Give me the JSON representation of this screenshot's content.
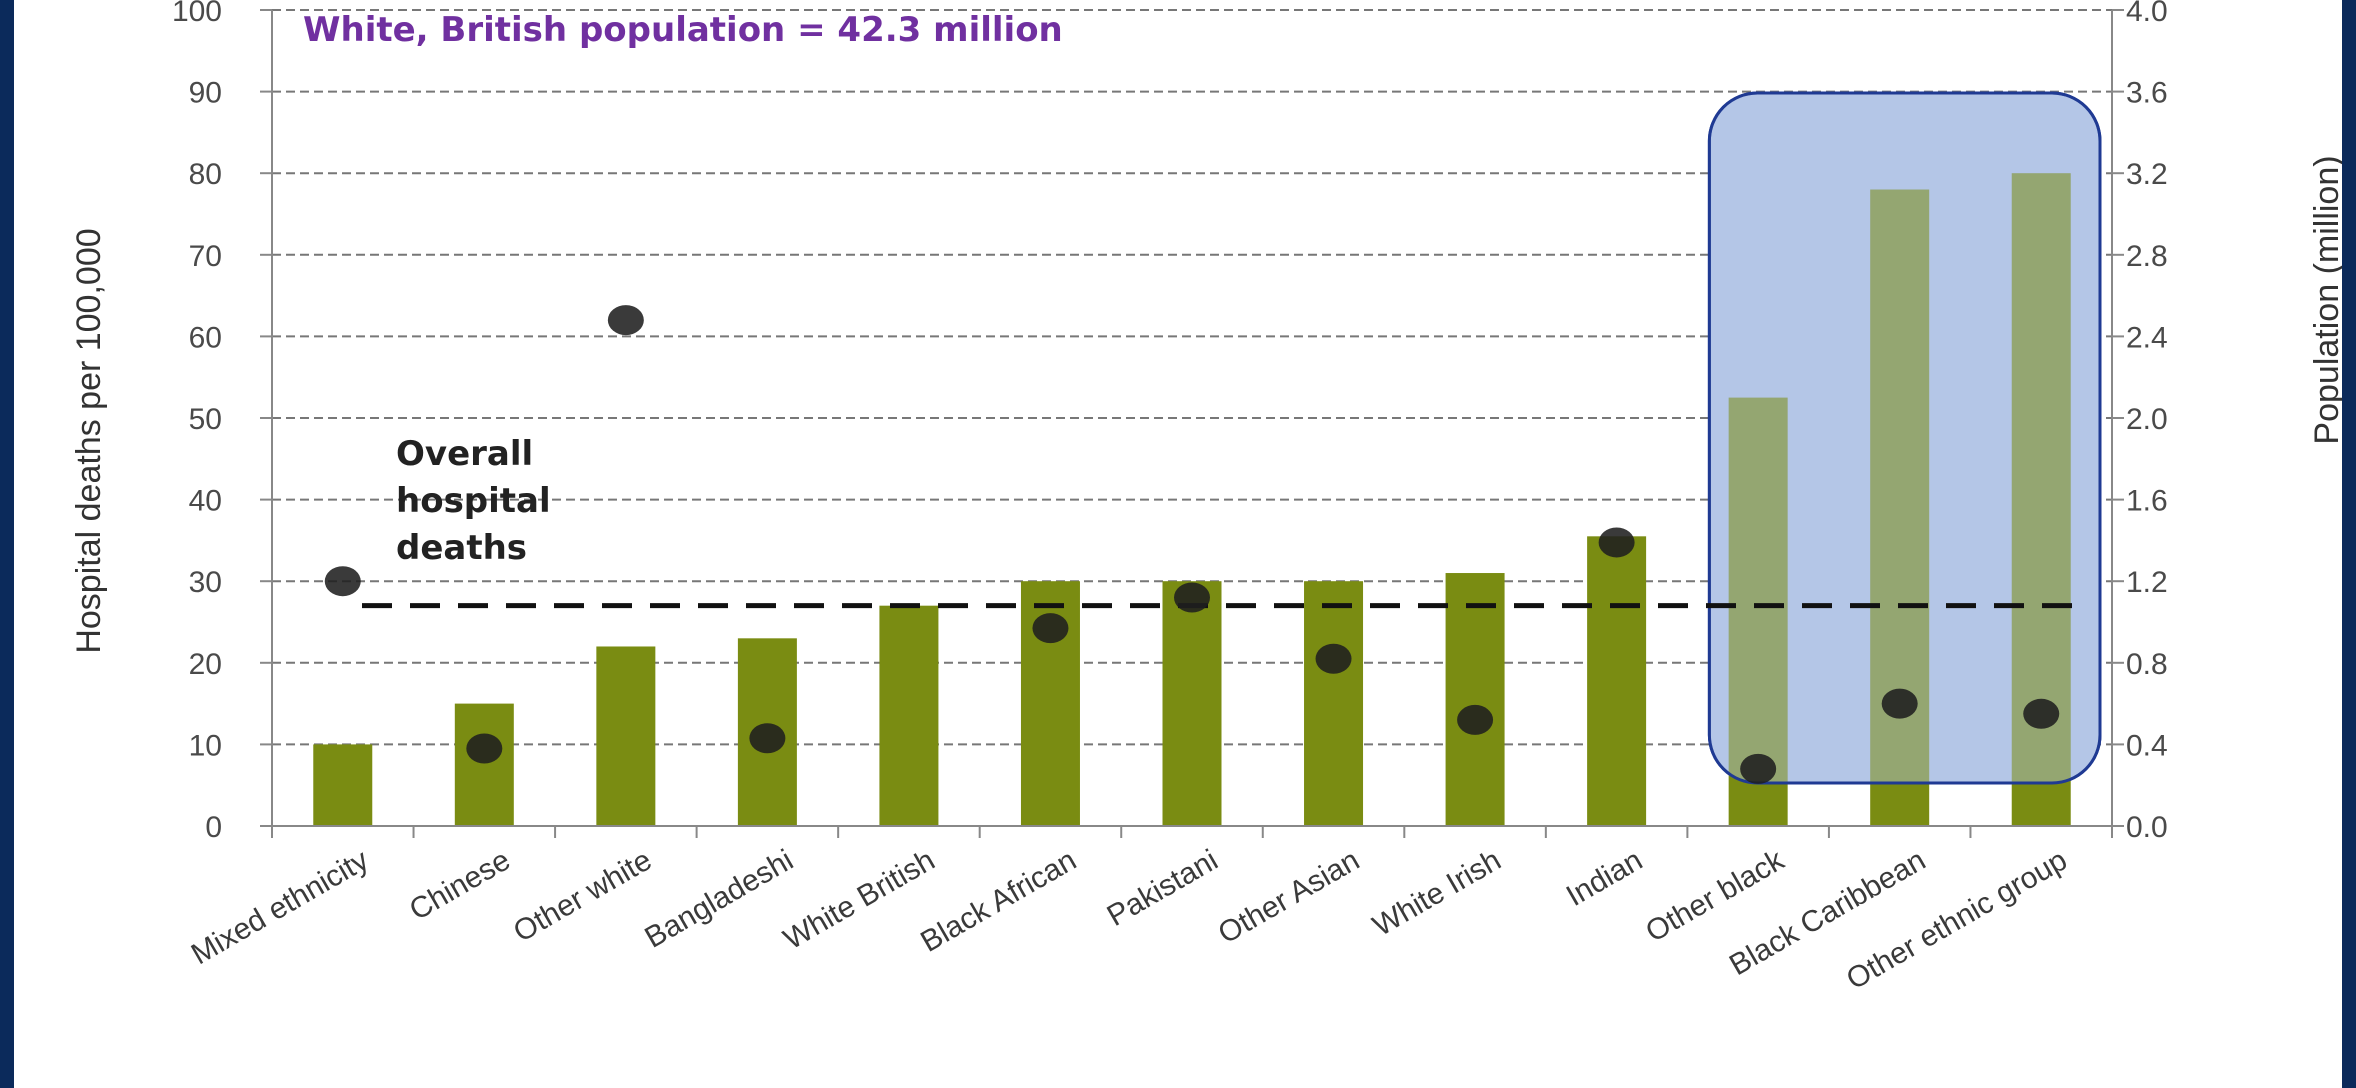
{
  "chart_data": {
    "type": "bar",
    "title": "White, British population = 42.3  million",
    "ylabel": "Hospital deaths per 100,000",
    "y2label": "Population (million)",
    "ylim": [
      0,
      100
    ],
    "y2lim": [
      0,
      4.0
    ],
    "yticks": [
      "0",
      "10",
      "20",
      "30",
      "40",
      "50",
      "60",
      "70",
      "80",
      "90",
      "100"
    ],
    "y2ticks": [
      "0.0",
      "0.4",
      "0.8",
      "1.2",
      "1.6",
      "2.0",
      "2.4",
      "2.8",
      "3.2",
      "3.6",
      "4.0"
    ],
    "grid": true,
    "categories": [
      "Mixed ethnicity",
      "Chinese",
      "Other white",
      "Bangladeshi",
      "White British",
      "Black African",
      "Pakistani",
      "Other Asian",
      "White Irish",
      "Indian",
      "Other black",
      "Black Caribbean",
      "Other ethnic group"
    ],
    "series": [
      {
        "kind": "bar",
        "axis": "left",
        "values": [
          10,
          15,
          22,
          23,
          27,
          30,
          30,
          30,
          31,
          35.5,
          52.5,
          78,
          80
        ]
      },
      {
        "kind": "scatter",
        "axis": "right",
        "values": [
          1.2,
          0.38,
          2.48,
          0.43,
          null,
          0.97,
          1.12,
          0.82,
          0.52,
          1.39,
          0.28,
          0.6,
          0.55
        ]
      }
    ],
    "reference_line": {
      "label": "Overall\nhospital\ndeaths",
      "label_lines": [
        "Overall",
        "hospital",
        "deaths"
      ],
      "value": 27
    },
    "highlight": {
      "categories": [
        "Other black",
        "Black Caribbean",
        "Other ethnic group"
      ],
      "fill": "#b4c6e7",
      "stroke": "#1f3a93"
    },
    "colors": {
      "bar": "#7a8c12",
      "point": "#1f1f1f",
      "title": "#7030a0",
      "frame": "#0b2a5b",
      "grid": "#777777"
    }
  }
}
